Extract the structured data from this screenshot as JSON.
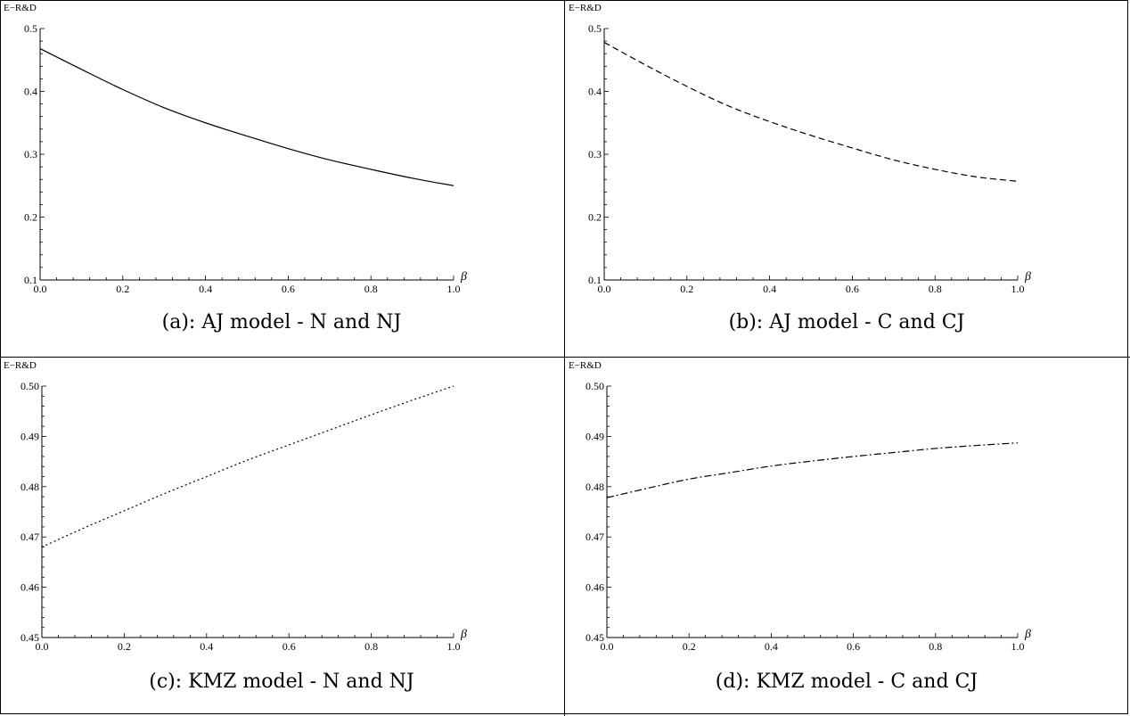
{
  "chart_data": [
    {
      "type": "line",
      "caption": "(a): AJ model - N and NJ",
      "ylabel": "E−R&D",
      "xlabel": "β",
      "style": "solid",
      "xlim": [
        0,
        1.0
      ],
      "ylim": [
        0.1,
        0.5
      ],
      "xticks": [
        "0.0",
        "0.2",
        "0.4",
        "0.6",
        "0.8",
        "1.0"
      ],
      "yticks": [
        "0.1",
        "0.2",
        "0.3",
        "0.4",
        "0.5"
      ],
      "x": [
        0.0,
        0.1,
        0.2,
        0.3,
        0.4,
        0.5,
        0.6,
        0.7,
        0.8,
        0.9,
        1.0
      ],
      "y": [
        0.468,
        0.435,
        0.403,
        0.374,
        0.35,
        0.329,
        0.309,
        0.291,
        0.276,
        0.262,
        0.25
      ]
    },
    {
      "type": "line",
      "caption": "(b): AJ model - C and CJ",
      "ylabel": "E−R&D",
      "xlabel": "β",
      "style": "dashed",
      "xlim": [
        0,
        1.0
      ],
      "ylim": [
        0.1,
        0.5
      ],
      "xticks": [
        "0.0",
        "0.2",
        "0.4",
        "0.6",
        "0.8",
        "1.0"
      ],
      "yticks": [
        "0.1",
        "0.2",
        "0.3",
        "0.4",
        "0.5"
      ],
      "x": [
        0.0,
        0.1,
        0.2,
        0.3,
        0.4,
        0.5,
        0.6,
        0.7,
        0.8,
        0.9,
        1.0
      ],
      "y": [
        0.478,
        0.442,
        0.408,
        0.377,
        0.352,
        0.33,
        0.31,
        0.291,
        0.276,
        0.264,
        0.257
      ]
    },
    {
      "type": "line",
      "caption": "(c): KMZ model - N and NJ",
      "ylabel": "E−R&D",
      "xlabel": "β",
      "style": "dotted",
      "xlim": [
        0,
        1.0
      ],
      "ylim": [
        0.45,
        0.5
      ],
      "xticks": [
        "0.0",
        "0.2",
        "0.4",
        "0.6",
        "0.8",
        "1.0"
      ],
      "yticks": [
        "0.45",
        "0.46",
        "0.47",
        "0.48",
        "0.49",
        "0.50"
      ],
      "x": [
        0.0,
        0.1,
        0.2,
        0.3,
        0.4,
        0.5,
        0.6,
        0.7,
        0.8,
        0.9,
        1.0
      ],
      "y": [
        0.468,
        0.4717,
        0.4752,
        0.4787,
        0.482,
        0.4853,
        0.4883,
        0.4913,
        0.4943,
        0.4972,
        0.5
      ]
    },
    {
      "type": "line",
      "caption": "(d): KMZ model - C and CJ",
      "ylabel": "E−R&D",
      "xlabel": "β",
      "style": "dashdot",
      "xlim": [
        0,
        1.0
      ],
      "ylim": [
        0.45,
        0.5
      ],
      "xticks": [
        "0.0",
        "0.2",
        "0.4",
        "0.6",
        "0.8",
        "1.0"
      ],
      "yticks": [
        "0.45",
        "0.46",
        "0.47",
        "0.48",
        "0.49",
        "0.50"
      ],
      "x": [
        0.0,
        0.1,
        0.2,
        0.3,
        0.4,
        0.5,
        0.6,
        0.7,
        0.8,
        0.9,
        1.0
      ],
      "y": [
        0.4778,
        0.4797,
        0.4815,
        0.4828,
        0.4841,
        0.4851,
        0.486,
        0.4868,
        0.4876,
        0.4882,
        0.4887
      ]
    }
  ]
}
